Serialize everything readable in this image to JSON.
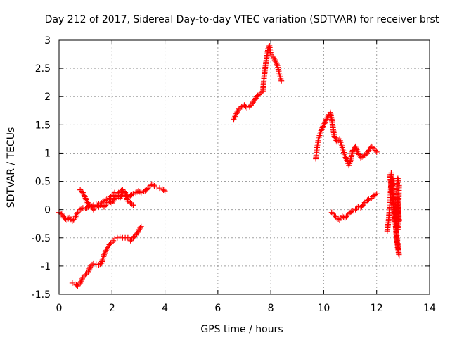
{
  "chart_data": {
    "type": "scatter",
    "title": "Day 212 of 2017, Sidereal Day-to-day VTEC variation (SDTVAR) for receiver brst",
    "xlabel": "GPS time / hours",
    "ylabel": "SDTVAR / TECUs",
    "xlim": [
      0,
      14
    ],
    "ylim": [
      -1.5,
      3
    ],
    "x_ticks": [
      "0",
      "2",
      "4",
      "6",
      "8",
      "10",
      "12",
      "14"
    ],
    "y_ticks": [
      "-1.5",
      "-1",
      "-0.5",
      "0",
      "0.5",
      "1",
      "1.5",
      "2",
      "2.5",
      "3"
    ],
    "grid": true,
    "marker": "plus",
    "color": "#ff0000",
    "series": [
      {
        "points": [
          [
            0.0,
            -0.05
          ],
          [
            0.1,
            -0.08
          ],
          [
            0.2,
            -0.15
          ],
          [
            0.3,
            -0.18
          ],
          [
            0.4,
            -0.14
          ],
          [
            0.5,
            -0.2
          ],
          [
            0.6,
            -0.15
          ],
          [
            0.7,
            -0.05
          ],
          [
            0.8,
            0.0
          ],
          [
            0.9,
            0.03
          ],
          [
            1.0,
            0.02
          ],
          [
            1.1,
            0.05
          ],
          [
            1.2,
            0.08
          ],
          [
            1.3,
            0.0
          ],
          [
            1.4,
            0.05
          ],
          [
            1.5,
            0.1
          ],
          [
            1.6,
            0.12
          ],
          [
            1.7,
            0.15
          ],
          [
            1.8,
            0.18
          ],
          [
            1.9,
            0.2
          ],
          [
            2.0,
            0.25
          ],
          [
            2.1,
            0.3
          ],
          [
            2.2,
            0.28
          ],
          [
            2.3,
            0.32
          ],
          [
            2.4,
            0.35
          ],
          [
            2.5,
            0.3
          ],
          [
            2.6,
            0.22
          ],
          [
            2.7,
            0.25
          ],
          [
            2.8,
            0.28
          ],
          [
            2.9,
            0.3
          ],
          [
            3.0,
            0.33
          ],
          [
            3.1,
            0.3
          ],
          [
            3.2,
            0.32
          ],
          [
            3.3,
            0.35
          ],
          [
            3.4,
            0.4
          ],
          [
            3.5,
            0.45
          ],
          [
            3.6,
            0.42
          ],
          [
            3.7,
            0.4
          ],
          [
            3.8,
            0.38
          ],
          [
            3.9,
            0.36
          ],
          [
            4.0,
            0.33
          ]
        ]
      },
      {
        "points": [
          [
            0.8,
            0.35
          ],
          [
            0.9,
            0.3
          ],
          [
            1.0,
            0.2
          ],
          [
            1.1,
            0.1
          ],
          [
            1.2,
            0.05
          ],
          [
            1.3,
            0.08
          ],
          [
            1.4,
            0.1
          ],
          [
            1.5,
            0.05
          ],
          [
            1.6,
            0.1
          ],
          [
            1.7,
            0.05
          ],
          [
            1.8,
            0.1
          ],
          [
            1.9,
            0.15
          ],
          [
            2.0,
            0.12
          ],
          [
            2.1,
            0.2
          ],
          [
            2.2,
            0.25
          ],
          [
            2.3,
            0.2
          ],
          [
            2.4,
            0.3
          ],
          [
            2.5,
            0.28
          ],
          [
            2.6,
            0.15
          ],
          [
            2.7,
            0.12
          ],
          [
            2.8,
            0.08
          ]
        ]
      },
      {
        "points": [
          [
            0.5,
            -1.3
          ],
          [
            0.6,
            -1.32
          ],
          [
            0.7,
            -1.35
          ],
          [
            0.8,
            -1.3
          ],
          [
            0.9,
            -1.2
          ],
          [
            1.0,
            -1.15
          ],
          [
            1.1,
            -1.1
          ],
          [
            1.2,
            -1.0
          ],
          [
            1.3,
            -0.95
          ],
          [
            1.4,
            -0.97
          ],
          [
            1.5,
            -0.98
          ],
          [
            1.6,
            -0.95
          ],
          [
            1.7,
            -0.8
          ],
          [
            1.8,
            -0.7
          ],
          [
            1.9,
            -0.62
          ],
          [
            2.0,
            -0.58
          ],
          [
            2.1,
            -0.52
          ],
          [
            2.2,
            -0.5
          ],
          [
            2.3,
            -0.48
          ],
          [
            2.4,
            -0.5
          ],
          [
            2.5,
            -0.5
          ],
          [
            2.6,
            -0.5
          ],
          [
            2.7,
            -0.55
          ],
          [
            2.8,
            -0.5
          ],
          [
            2.9,
            -0.45
          ],
          [
            3.0,
            -0.38
          ],
          [
            3.1,
            -0.3
          ]
        ]
      },
      {
        "points": [
          [
            6.6,
            1.6
          ],
          [
            6.7,
            1.7
          ],
          [
            6.8,
            1.78
          ],
          [
            6.9,
            1.82
          ],
          [
            7.0,
            1.85
          ],
          [
            7.1,
            1.8
          ],
          [
            7.2,
            1.82
          ],
          [
            7.3,
            1.88
          ],
          [
            7.4,
            1.95
          ],
          [
            7.5,
            2.02
          ],
          [
            7.6,
            2.05
          ],
          [
            7.7,
            2.1
          ],
          [
            7.75,
            2.35
          ],
          [
            7.8,
            2.55
          ],
          [
            7.85,
            2.7
          ],
          [
            7.9,
            2.85
          ],
          [
            7.95,
            2.9
          ],
          [
            8.0,
            2.75
          ],
          [
            8.05,
            2.72
          ],
          [
            8.1,
            2.7
          ],
          [
            8.15,
            2.65
          ],
          [
            8.2,
            2.6
          ],
          [
            8.25,
            2.55
          ],
          [
            8.3,
            2.45
          ],
          [
            8.35,
            2.35
          ],
          [
            8.4,
            2.28
          ]
        ]
      },
      {
        "points": [
          [
            9.7,
            0.9
          ],
          [
            9.75,
            1.1
          ],
          [
            9.8,
            1.25
          ],
          [
            9.9,
            1.4
          ],
          [
            10.0,
            1.5
          ],
          [
            10.1,
            1.6
          ],
          [
            10.2,
            1.68
          ],
          [
            10.25,
            1.72
          ],
          [
            10.3,
            1.6
          ],
          [
            10.35,
            1.45
          ],
          [
            10.4,
            1.3
          ],
          [
            10.5,
            1.2
          ],
          [
            10.6,
            1.25
          ],
          [
            10.7,
            1.1
          ],
          [
            10.8,
            0.95
          ],
          [
            10.9,
            0.85
          ],
          [
            10.95,
            0.78
          ],
          [
            11.0,
            0.85
          ],
          [
            11.1,
            1.05
          ],
          [
            11.2,
            1.12
          ],
          [
            11.3,
            1.0
          ],
          [
            11.4,
            0.92
          ],
          [
            11.5,
            0.95
          ],
          [
            11.6,
            0.98
          ],
          [
            11.7,
            1.05
          ],
          [
            11.8,
            1.12
          ],
          [
            11.9,
            1.08
          ],
          [
            12.0,
            1.02
          ]
        ]
      },
      {
        "points": [
          [
            10.3,
            -0.05
          ],
          [
            10.4,
            -0.1
          ],
          [
            10.5,
            -0.15
          ],
          [
            10.6,
            -0.18
          ],
          [
            10.7,
            -0.12
          ],
          [
            10.8,
            -0.15
          ],
          [
            10.9,
            -0.1
          ],
          [
            11.0,
            -0.05
          ],
          [
            11.1,
            -0.02
          ],
          [
            11.2,
            0.0
          ],
          [
            11.3,
            0.05
          ],
          [
            11.4,
            0.03
          ],
          [
            11.5,
            0.1
          ],
          [
            11.6,
            0.15
          ],
          [
            11.7,
            0.18
          ],
          [
            11.8,
            0.2
          ],
          [
            11.9,
            0.25
          ],
          [
            12.0,
            0.28
          ]
        ]
      },
      {
        "points": [
          [
            12.4,
            -0.38
          ],
          [
            12.45,
            -0.2
          ],
          [
            12.5,
            0.1
          ],
          [
            12.55,
            0.5
          ],
          [
            12.6,
            0.55
          ],
          [
            12.62,
            0.2
          ],
          [
            12.65,
            0.0
          ],
          [
            12.68,
            -0.1
          ],
          [
            12.7,
            -0.2
          ],
          [
            12.72,
            -0.3
          ],
          [
            12.75,
            -0.5
          ],
          [
            12.8,
            -0.7
          ],
          [
            12.85,
            -0.82
          ],
          [
            12.5,
            0.62
          ],
          [
            12.55,
            0.65
          ],
          [
            12.6,
            0.4
          ],
          [
            12.65,
            0.15
          ],
          [
            12.7,
            -0.05
          ],
          [
            12.72,
            -0.15
          ],
          [
            12.75,
            -0.25
          ],
          [
            12.8,
            -0.35
          ],
          [
            12.85,
            0.45
          ],
          [
            12.8,
            0.55
          ],
          [
            12.75,
            0.35
          ],
          [
            12.85,
            -0.2
          ]
        ]
      }
    ]
  }
}
